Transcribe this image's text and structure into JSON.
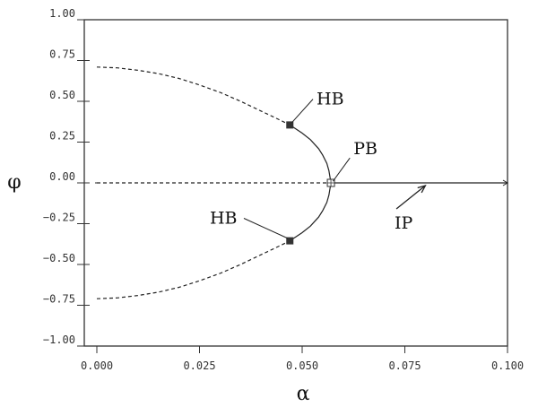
{
  "chart_data": {
    "type": "line",
    "title": "",
    "xlabel": "α",
    "ylabel": "φ",
    "xlim": [
      0.0,
      0.1
    ],
    "ylim": [
      -1.0,
      1.0
    ],
    "x_ticks": [
      "0.000",
      "0.025",
      "0.050",
      "0.075",
      "0.100"
    ],
    "y_ticks": [
      "1.00",
      "0.75",
      "0.50",
      "0.25",
      "0.00",
      "−0.25",
      "−0.50",
      "−0.75",
      "−1.00"
    ],
    "grid": false,
    "colors": {
      "line": "#222222",
      "frame": "#333333",
      "marker": "#333333"
    },
    "series": [
      {
        "style": "dashed",
        "x": [
          0.0,
          0.005,
          0.01,
          0.015,
          0.02,
          0.025,
          0.03,
          0.035,
          0.04,
          0.045,
          0.047
        ],
        "y": [
          0.71,
          0.705,
          0.69,
          0.67,
          0.64,
          0.6,
          0.555,
          0.5,
          0.44,
          0.38,
          0.355
        ]
      },
      {
        "style": "solid",
        "x": [
          0.047,
          0.05,
          0.052,
          0.054,
          0.055,
          0.056,
          0.0565,
          0.057
        ],
        "y": [
          0.355,
          0.305,
          0.265,
          0.21,
          0.17,
          0.12,
          0.075,
          0.0
        ]
      },
      {
        "style": "dashed",
        "x": [
          0.0,
          0.005,
          0.01,
          0.015,
          0.02,
          0.025,
          0.03,
          0.035,
          0.04,
          0.045,
          0.047
        ],
        "y": [
          -0.71,
          -0.705,
          -0.69,
          -0.67,
          -0.64,
          -0.6,
          -0.555,
          -0.5,
          -0.44,
          -0.38,
          -0.355
        ]
      },
      {
        "style": "solid",
        "x": [
          0.047,
          0.05,
          0.052,
          0.054,
          0.055,
          0.056,
          0.0565,
          0.057
        ],
        "y": [
          -0.355,
          -0.305,
          -0.265,
          -0.21,
          -0.17,
          -0.12,
          -0.075,
          0.0
        ]
      },
      {
        "style": "dashed",
        "x": [
          0.0,
          0.057
        ],
        "y": [
          0.0,
          0.0
        ]
      },
      {
        "style": "solid",
        "x": [
          0.057,
          0.1
        ],
        "y": [
          0.0,
          0.0
        ]
      }
    ],
    "points": [
      {
        "label": "HB",
        "x": 0.047,
        "y": 0.355,
        "marker": "filled-square"
      },
      {
        "label": "HB",
        "x": 0.047,
        "y": -0.355,
        "marker": "filled-square"
      },
      {
        "label": "PB",
        "x": 0.057,
        "y": 0.0,
        "marker": "open-square"
      }
    ],
    "annotations": [
      {
        "text": "HB",
        "x": 0.0535,
        "y": 0.48,
        "leader_to": [
          0.0475,
          0.37
        ]
      },
      {
        "text": "HB",
        "x": 0.0275,
        "y": -0.25,
        "leader_to": [
          0.0465,
          -0.34
        ]
      },
      {
        "text": "PB",
        "x": 0.0625,
        "y": 0.175,
        "leader_to": [
          0.0575,
          0.01
        ]
      },
      {
        "text": "IP",
        "x": 0.0725,
        "y": -0.28,
        "arrow_to": [
          0.08,
          0.0
        ]
      }
    ]
  }
}
